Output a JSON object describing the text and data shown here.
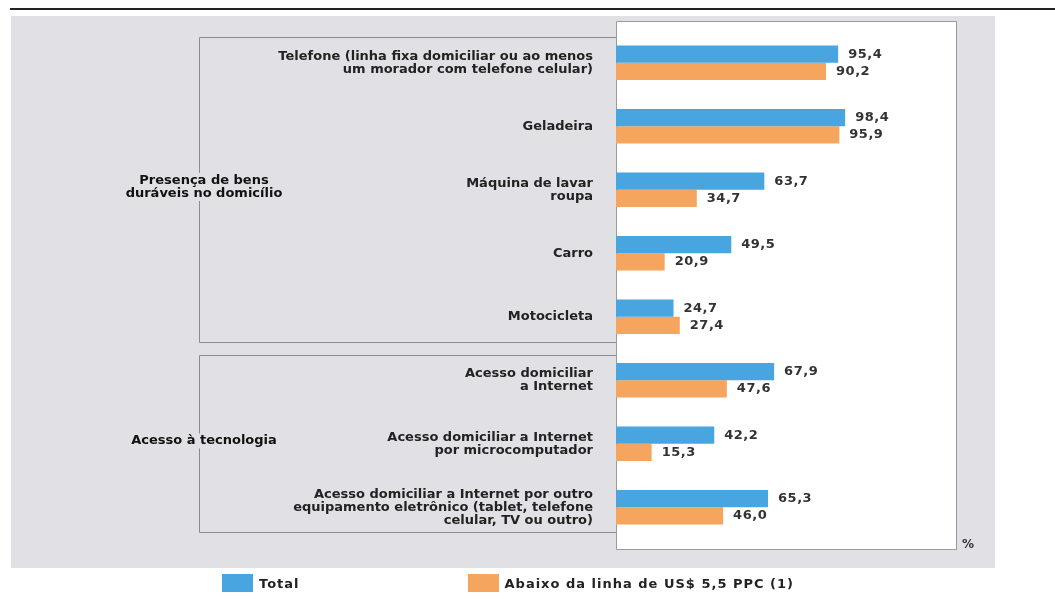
{
  "chart_data": {
    "type": "bar",
    "orientation": "horizontal",
    "categories": [
      "Telefone (linha fixa domiciliar ou ao menos\num morador com telefone celular)",
      "Geladeira",
      "Máquina de lavar\nroupa",
      "Carro",
      "Motocicleta",
      "Acesso domiciliar\na Internet",
      "Acesso domiciliar a Internet\npor microcomputador",
      "Acesso domiciliar a Internet por outro\nequipamento eletrônico (tablet, telefone\ncelular, TV ou outro)"
    ],
    "series": [
      {
        "name": "Total",
        "color": "#49a5df",
        "values": [
          95.4,
          98.4,
          63.7,
          49.5,
          24.7,
          67.9,
          42.2,
          65.3
        ],
        "value_labels": [
          "95,4",
          "98,4",
          "63,7",
          "49,5",
          "24,7",
          "67,9",
          "42,2",
          "65,3"
        ]
      },
      {
        "name": "Abaixo da linha de US$ 5,5 PPC (1)",
        "color": "#f5a55e",
        "values": [
          90.2,
          95.9,
          34.7,
          20.9,
          27.4,
          47.6,
          15.3,
          46.0
        ],
        "value_labels": [
          "90,2",
          "95,9",
          "34,7",
          "20,9",
          "27,4",
          "47,6",
          "15,3",
          "46,0"
        ]
      }
    ],
    "xlim": [
      0,
      146
    ],
    "xlabel": "%",
    "tick_labels": "y",
    "legend": "bottom",
    "annotations": [
      "Presença de bens\nduráveis no domicílio",
      "Acesso à tecnologia"
    ]
  }
}
